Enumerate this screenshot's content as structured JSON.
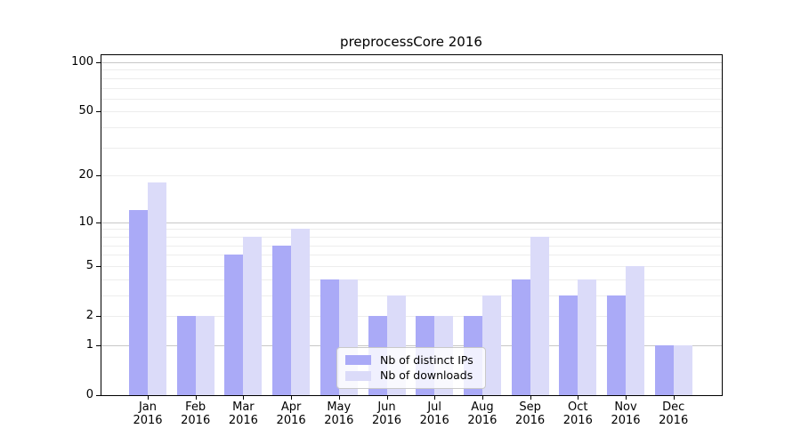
{
  "title": "preprocessCore 2016",
  "colors": {
    "distinct_ips": "#aaaaf7",
    "downloads": "#dbdbf9",
    "grid_major": "#c8c8c8",
    "grid_minor": "#ededed",
    "axis": "#000000",
    "legend_border": "#c9c9c9"
  },
  "y_axis": {
    "tick_labels": [
      "100",
      "50",
      "20",
      "10",
      "5",
      "2",
      "1",
      "0"
    ],
    "tick_values": [
      100,
      50,
      20,
      10,
      5,
      2,
      1,
      0
    ]
  },
  "legend": {
    "items": [
      {
        "label": "Nb of distinct IPs",
        "key": "distinct_ips"
      },
      {
        "label": "Nb of downloads",
        "key": "downloads"
      }
    ]
  },
  "chart_data": {
    "type": "bar",
    "title": "preprocessCore 2016",
    "categories": [
      "Jan 2016",
      "Feb 2016",
      "Mar 2016",
      "Apr 2016",
      "May 2016",
      "Jun 2016",
      "Jul 2016",
      "Aug 2016",
      "Sep 2016",
      "Oct 2016",
      "Nov 2016",
      "Dec 2016"
    ],
    "series": [
      {
        "name": "Nb of distinct IPs",
        "key": "distinct_ips",
        "values": [
          12,
          2,
          6,
          7,
          4,
          2,
          2,
          2,
          4,
          3,
          3,
          1
        ]
      },
      {
        "name": "Nb of downloads",
        "key": "downloads",
        "values": [
          18,
          2,
          8,
          9,
          4,
          3,
          2,
          3,
          8,
          4,
          5,
          1
        ]
      }
    ],
    "xlabel": "",
    "ylabel": "",
    "y_scale": "log1p",
    "ylim": [
      0,
      100
    ],
    "y_ticks": [
      0,
      1,
      2,
      5,
      10,
      20,
      50,
      100
    ],
    "major_gridlines": [
      1,
      10,
      100
    ],
    "minor_gridlines": [
      2,
      3,
      4,
      5,
      6,
      7,
      8,
      9,
      20,
      30,
      40,
      50,
      60,
      70,
      80,
      90
    ],
    "grid": true,
    "legend_position": "inside lower center"
  }
}
